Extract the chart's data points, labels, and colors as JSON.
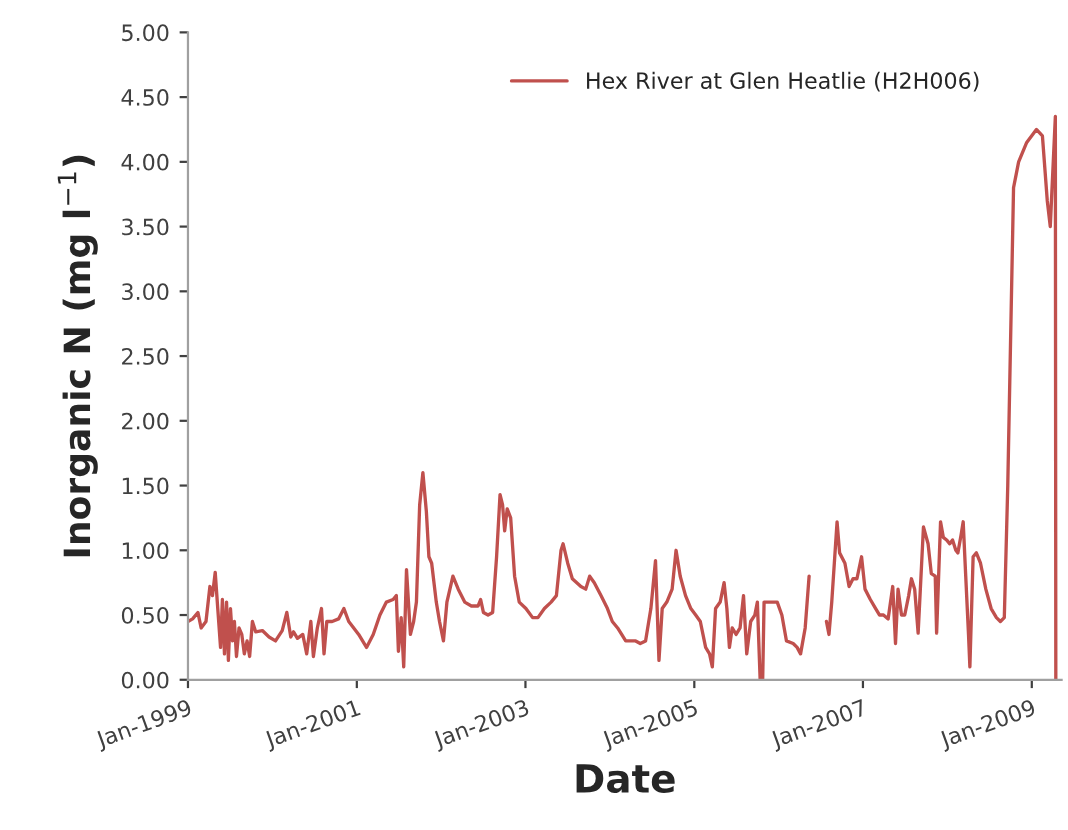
{
  "chart_data": {
    "type": "line",
    "xlabel": "Date",
    "ylabel": "Inorganic N (mg l$^{−1}$)",
    "xlim": [
      "1999-01-01",
      "2009-05-10"
    ],
    "xticks": [
      {
        "value": "1999-01-01",
        "label": "Jan-1999"
      },
      {
        "value": "2001-01-01",
        "label": "Jan-2001"
      },
      {
        "value": "2003-01-01",
        "label": "Jan-2003"
      },
      {
        "value": "2005-01-01",
        "label": "Jan-2005"
      },
      {
        "value": "2007-01-01",
        "label": "Jan-2007"
      },
      {
        "value": "2009-01-01",
        "label": "Jan-2009"
      }
    ],
    "ylim": [
      0,
      5
    ],
    "yticks": [
      {
        "value": 0,
        "label": "0.00"
      },
      {
        "value": 0.5,
        "label": "0.50"
      },
      {
        "value": 1,
        "label": "1.00"
      },
      {
        "value": 1.5,
        "label": "1.50"
      },
      {
        "value": 2,
        "label": "2.00"
      },
      {
        "value": 2.5,
        "label": "2.50"
      },
      {
        "value": 3,
        "label": "3.00"
      },
      {
        "value": 3.5,
        "label": "3.50"
      },
      {
        "value": 4,
        "label": "4.00"
      },
      {
        "value": 4.5,
        "label": "4.50"
      },
      {
        "value": 5,
        "label": "5.00"
      }
    ],
    "grid": false,
    "legend": "top right",
    "marker": "none",
    "line_style": "solid",
    "series": [
      {
        "name": "Hex River at Glen Heatlie (H2H006)",
        "color": "#c0504d",
        "x": [
          "1999-01-01",
          "1999-01-21",
          "1999-02-13",
          "1999-02-27",
          "1999-03-20",
          "1999-04-06",
          "1999-04-17",
          "1999-04-29",
          "1999-05-10",
          "1999-05-22",
          "1999-05-30",
          "1999-06-08",
          "1999-06-17",
          "1999-06-25",
          "1999-07-04",
          "1999-07-13",
          "1999-07-21",
          "1999-07-30",
          "1999-08-10",
          "1999-08-22",
          "1999-09-02",
          "1999-09-14",
          "1999-09-25",
          "1999-10-07",
          "1999-10-21",
          "1999-11-19",
          "1999-12-18",
          "2000-01-15",
          "2000-02-13",
          "2000-03-04",
          "2000-03-21",
          "2000-04-02",
          "2000-04-19",
          "2000-05-12",
          "2000-05-29",
          "2000-06-16",
          "2000-06-27",
          "2000-07-14",
          "2000-08-01",
          "2000-08-12",
          "2000-08-24",
          "2000-09-16",
          "2000-10-14",
          "2000-11-06",
          "2000-11-27",
          "2001-01-09",
          "2001-02-12",
          "2001-03-13",
          "2001-04-11",
          "2001-05-09",
          "2001-06-07",
          "2001-06-21",
          "2001-06-30",
          "2001-07-12",
          "2001-07-23",
          "2001-08-04",
          "2001-08-21",
          "2001-09-04",
          "2001-09-16",
          "2001-09-30",
          "2001-10-14",
          "2001-10-29",
          "2001-11-09",
          "2001-11-21",
          "2001-12-11",
          "2001-12-25",
          "2002-01-11",
          "2002-01-26",
          "2002-02-21",
          "2002-03-16",
          "2002-04-13",
          "2002-05-12",
          "2002-06-10",
          "2002-06-21",
          "2002-07-03",
          "2002-07-23",
          "2002-08-12",
          "2002-08-29",
          "2002-09-13",
          "2002-09-24",
          "2002-10-03",
          "2002-10-14",
          "2002-10-29",
          "2002-11-15",
          "2002-12-05",
          "2003-01-03",
          "2003-02-01",
          "2003-02-24",
          "2003-03-24",
          "2003-04-22",
          "2003-05-15",
          "2003-06-04",
          "2003-06-13",
          "2003-07-03",
          "2003-07-23",
          "2003-08-29",
          "2003-09-19",
          "2003-10-06",
          "2003-10-26",
          "2003-11-24",
          "2003-12-22",
          "2004-01-12",
          "2004-02-04",
          "2004-03-10",
          "2004-04-22",
          "2004-05-12",
          "2004-06-04",
          "2004-06-27",
          "2004-07-17",
          "2004-08-01",
          "2004-08-15",
          "2004-09-04",
          "2004-09-27",
          "2004-10-14",
          "2004-11-01",
          "2004-11-24",
          "2004-12-17",
          "2005-01-07",
          "2005-01-27",
          "2005-02-19",
          "2005-03-08",
          "2005-03-20",
          "2005-04-03",
          "2005-04-23",
          "2005-05-10",
          "2005-05-22",
          "2005-06-02",
          "2005-06-14",
          "2005-07-01",
          "2005-07-18",
          "2005-08-02",
          "2005-08-16",
          "2005-09-02",
          "2005-09-20",
          "2005-10-01",
          "2005-10-13",
          "2005-10-24",
          "2005-10-30",
          "2005-11-28",
          "2005-12-26",
          "2006-01-15",
          "2006-02-04",
          "2006-03-05",
          "2006-03-22",
          "2006-04-06",
          "2006-04-26",
          "2006-05-13",
          "2006-06-22",
          "2006-07-27",
          "2006-08-07",
          "2006-08-19",
          "2006-09-11",
          "2006-09-22",
          "2006-10-15",
          "2006-11-02",
          "2006-11-19",
          "2006-12-06",
          "2006-12-26",
          "2007-01-10",
          "2007-02-02",
          "2007-02-25",
          "2007-03-14",
          "2007-03-31",
          "2007-04-20",
          "2007-05-10",
          "2007-05-22",
          "2007-06-02",
          "2007-06-17",
          "2007-07-01",
          "2007-07-18",
          "2007-07-30",
          "2007-08-13",
          "2007-08-28",
          "2007-09-20",
          "2007-10-10",
          "2007-10-24",
          "2007-11-10",
          "2007-11-16",
          "2007-12-03",
          "2007-12-15",
          "2007-12-29",
          "2008-01-12",
          "2008-01-24",
          "2008-02-07",
          "2008-02-16",
          "2008-03-01",
          "2008-03-10",
          "2008-03-21",
          "2008-04-02",
          "2008-04-08",
          "2008-04-22",
          "2008-05-06",
          "2008-05-24",
          "2008-06-16",
          "2008-07-09",
          "2008-08-01",
          "2008-08-18",
          "2008-09-04",
          "2008-09-19",
          "2008-10-14",
          "2008-11-05",
          "2008-12-10",
          "2009-01-21",
          "2009-02-16",
          "2009-03-09",
          "2009-03-22",
          "2009-04-13",
          "2009-04-15"
        ],
        "values": [
          0.45,
          0.47,
          0.52,
          0.4,
          0.45,
          0.72,
          0.65,
          0.83,
          0.55,
          0.25,
          0.62,
          0.2,
          0.6,
          0.15,
          0.55,
          0.3,
          0.45,
          0.18,
          0.4,
          0.35,
          0.2,
          0.3,
          0.18,
          0.45,
          0.37,
          0.38,
          0.33,
          0.3,
          0.38,
          0.52,
          0.33,
          0.37,
          0.32,
          0.35,
          0.2,
          0.45,
          0.18,
          0.4,
          0.55,
          0.2,
          0.45,
          0.45,
          0.47,
          0.55,
          0.45,
          0.35,
          0.25,
          0.35,
          0.5,
          0.6,
          0.62,
          0.65,
          0.22,
          0.48,
          0.1,
          0.85,
          0.35,
          0.45,
          0.6,
          1.35,
          1.6,
          1.3,
          0.95,
          0.9,
          0.6,
          0.45,
          0.3,
          0.6,
          0.8,
          0.7,
          0.6,
          0.57,
          0.57,
          0.62,
          0.52,
          0.5,
          0.52,
          0.95,
          1.43,
          1.35,
          1.15,
          1.32,
          1.25,
          0.8,
          0.6,
          0.55,
          0.48,
          0.48,
          0.55,
          0.6,
          0.65,
          1.0,
          1.05,
          0.9,
          0.78,
          0.72,
          0.7,
          0.8,
          0.75,
          0.65,
          0.55,
          0.45,
          0.4,
          0.3,
          0.3,
          0.28,
          0.3,
          0.55,
          0.92,
          0.15,
          0.55,
          0.6,
          0.7,
          1.0,
          0.8,
          0.65,
          0.55,
          0.5,
          0.45,
          0.25,
          0.2,
          0.1,
          0.55,
          0.6,
          0.75,
          0.55,
          0.25,
          0.4,
          0.35,
          0.4,
          0.65,
          0.2,
          0.45,
          0.5,
          0.6,
          0.0,
          0.0,
          0.6,
          0.6,
          0.6,
          0.5,
          0.3,
          0.28,
          0.25,
          0.2,
          0.4,
          0.8,
          null,
          0.45,
          0.35,
          0.6,
          1.22,
          0.98,
          0.9,
          0.72,
          0.78,
          0.78,
          0.95,
          0.7,
          0.62,
          0.55,
          0.5,
          0.5,
          0.47,
          0.72,
          0.28,
          0.7,
          0.5,
          0.5,
          0.65,
          0.78,
          0.7,
          0.36,
          1.18,
          1.05,
          0.82,
          0.8,
          0.36,
          1.22,
          1.1,
          1.08,
          1.05,
          1.08,
          1.0,
          0.98,
          1.12,
          1.22,
          0.8,
          0.35,
          0.1,
          0.95,
          0.98,
          0.9,
          0.7,
          0.55,
          0.48,
          0.45,
          0.48,
          1.5,
          3.8,
          4.0,
          4.15,
          4.25,
          4.2,
          3.7,
          3.5,
          4.35,
          0.0
        ]
      }
    ]
  }
}
